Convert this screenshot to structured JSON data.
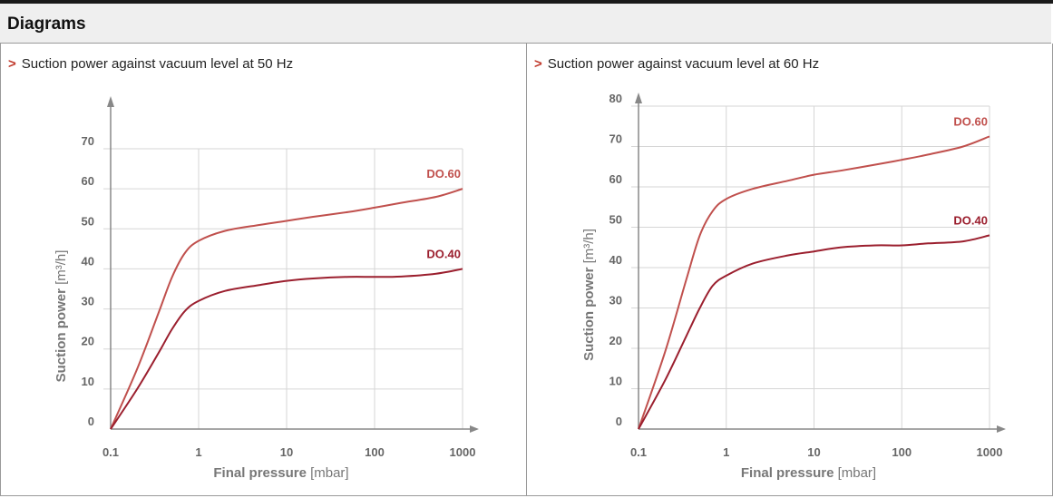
{
  "page": {
    "title": "Diagrams"
  },
  "colors": {
    "accent": "#c0392b",
    "do60": "#c0504d",
    "do40": "#9b1f2e",
    "grid": "#d6d6d6",
    "axis": "#888888"
  },
  "panels": [
    {
      "heading_marker": ">",
      "heading": "Suction power against vacuum level at 50 Hz"
    },
    {
      "heading_marker": ">",
      "heading": "Suction power against vacuum level at 60 Hz"
    }
  ],
  "chart_data": [
    {
      "type": "line",
      "x_scale": "log",
      "xlim": [
        0.1,
        1000
      ],
      "ylim": [
        0,
        70
      ],
      "grid": true,
      "x_ticks": [
        "0.1",
        "1",
        "10",
        "100",
        "1000"
      ],
      "y_ticks": [
        "0",
        "10",
        "20",
        "30",
        "40",
        "50",
        "60",
        "70"
      ],
      "xlabel_main": "Final pressure",
      "xlabel_unit": "[mbar]",
      "ylabel_main": "Suction power",
      "ylabel_unit": "[m³/h]",
      "series": [
        {
          "name": "DO.60",
          "color": "#c0504d",
          "x": [
            0.1,
            0.2,
            0.35,
            0.5,
            0.7,
            1,
            2,
            5,
            10,
            20,
            50,
            100,
            200,
            500,
            1000
          ],
          "y": [
            0,
            15,
            29,
            38,
            44,
            47,
            49.5,
            51,
            52,
            53,
            54.2,
            55.3,
            56.5,
            58,
            60
          ]
        },
        {
          "name": "DO.40",
          "color": "#9b1f2e",
          "x": [
            0.1,
            0.2,
            0.35,
            0.5,
            0.7,
            1,
            2,
            5,
            10,
            20,
            50,
            100,
            200,
            500,
            1000
          ],
          "y": [
            0,
            10,
            19,
            25,
            29.5,
            32,
            34.5,
            36,
            37,
            37.6,
            38,
            38,
            38.1,
            38.8,
            40
          ]
        }
      ]
    },
    {
      "type": "line",
      "x_scale": "log",
      "xlim": [
        0.1,
        1000
      ],
      "ylim": [
        0,
        80
      ],
      "grid": true,
      "x_ticks": [
        "0.1",
        "1",
        "10",
        "100",
        "1000"
      ],
      "y_ticks": [
        "0",
        "10",
        "20",
        "30",
        "40",
        "50",
        "60",
        "70",
        "80"
      ],
      "xlabel_main": "Final pressure",
      "xlabel_unit": "[mbar]",
      "ylabel_main": "Suction power",
      "ylabel_unit": "[m³/h]",
      "series": [
        {
          "name": "DO.60",
          "color": "#c0504d",
          "x": [
            0.1,
            0.2,
            0.35,
            0.5,
            0.7,
            1,
            2,
            5,
            10,
            20,
            50,
            100,
            200,
            500,
            1000
          ],
          "y": [
            0,
            19,
            37,
            48,
            54,
            57,
            59.5,
            61.5,
            63,
            64,
            65.5,
            66.7,
            68,
            70,
            72.5
          ]
        },
        {
          "name": "DO.40",
          "color": "#9b1f2e",
          "x": [
            0.1,
            0.2,
            0.35,
            0.5,
            0.7,
            1,
            2,
            5,
            10,
            20,
            50,
            100,
            200,
            500,
            1000
          ],
          "y": [
            0,
            12,
            23,
            30,
            35.5,
            38,
            41,
            43,
            44,
            45,
            45.5,
            45.5,
            46,
            46.5,
            48
          ]
        }
      ]
    }
  ]
}
